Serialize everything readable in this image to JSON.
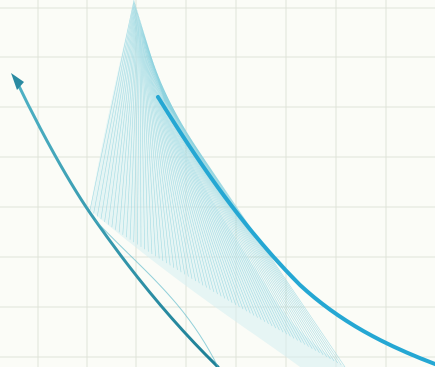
{
  "colors": {
    "background": "#fbfcf7",
    "grid": "#dfe3d8",
    "curve_left_dark": "#1d7f96",
    "curve_left_light": "#4fb2c5",
    "curve_right": "#25a7d3",
    "hatch": "#8fd3df",
    "hatch_fill": "#d6eef2"
  },
  "icons": {
    "arrow": "arrowhead-icon"
  }
}
